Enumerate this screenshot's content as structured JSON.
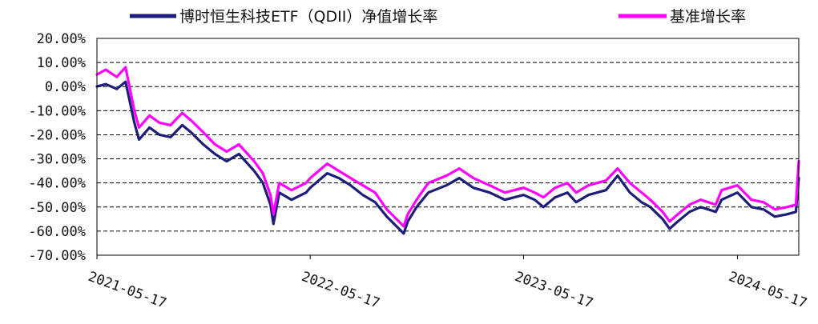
{
  "chart_data": {
    "type": "line",
    "x_ticks": [
      "2021-05-17",
      "2022-05-17",
      "2023-05-17",
      "2024-05-17"
    ],
    "y_ticks": [
      "20.00%",
      "10.00%",
      "0.00%",
      "-10.00%",
      "-20.00%",
      "-30.00%",
      "-40.00%",
      "-50.00%",
      "-60.00%",
      "-70.00%"
    ],
    "ylim": [
      -70,
      20
    ],
    "xlim": [
      "2021-05-17",
      "2024-08-30"
    ],
    "grid": "horizontal dashed",
    "legend_position": "top",
    "series": [
      {
        "name": "博时恒生科技ETF（QDII）净值增长率",
        "color": "#1c1c7a",
        "x": [
          "2021-05-17",
          "2021-06-01",
          "2021-06-20",
          "2021-07-05",
          "2021-07-20",
          "2021-07-28",
          "2021-08-15",
          "2021-09-01",
          "2021-09-20",
          "2021-10-10",
          "2021-10-25",
          "2021-11-15",
          "2021-12-05",
          "2021-12-25",
          "2022-01-15",
          "2022-02-10",
          "2022-02-25",
          "2022-03-10",
          "2022-03-15",
          "2022-03-25",
          "2022-04-15",
          "2022-05-10",
          "2022-05-17",
          "2022-06-15",
          "2022-07-05",
          "2022-07-25",
          "2022-08-15",
          "2022-09-05",
          "2022-09-25",
          "2022-10-24",
          "2022-10-31",
          "2022-11-15",
          "2022-12-05",
          "2023-01-05",
          "2023-01-27",
          "2023-02-20",
          "2023-03-20",
          "2023-04-15",
          "2023-05-17",
          "2023-06-05",
          "2023-06-20",
          "2023-07-10",
          "2023-07-31",
          "2023-08-15",
          "2023-09-05",
          "2023-10-05",
          "2023-10-25",
          "2023-11-15",
          "2023-12-05",
          "2023-12-20",
          "2024-01-10",
          "2024-01-22",
          "2024-02-05",
          "2024-02-25",
          "2024-03-15",
          "2024-04-10",
          "2024-04-20",
          "2024-05-17",
          "2024-06-10",
          "2024-07-01",
          "2024-07-20",
          "2024-08-10",
          "2024-08-25",
          "2024-08-30"
        ],
        "values": [
          0,
          1,
          -1,
          2,
          -15,
          -22,
          -17,
          -20,
          -21,
          -16,
          -19,
          -24,
          -28,
          -31,
          -28,
          -35,
          -40,
          -49,
          -57,
          -44,
          -47,
          -44,
          -42,
          -36,
          -38,
          -41,
          -45,
          -48,
          -54,
          -61,
          -56,
          -50,
          -44,
          -41,
          -38,
          -42,
          -44,
          -47,
          -45,
          -47,
          -50,
          -46,
          -44,
          -48,
          -45,
          -43,
          -37,
          -44,
          -48,
          -50,
          -55,
          -59,
          -56,
          -52,
          -50,
          -52,
          -47,
          -44,
          -50,
          -51,
          -54,
          -53,
          -52,
          -38
        ]
      },
      {
        "name": "基准增长率",
        "color": "#ff00ff",
        "x": [
          "2021-05-17",
          "2021-06-01",
          "2021-06-20",
          "2021-07-05",
          "2021-07-20",
          "2021-07-28",
          "2021-08-15",
          "2021-09-01",
          "2021-09-20",
          "2021-10-10",
          "2021-10-25",
          "2021-11-15",
          "2021-12-05",
          "2021-12-25",
          "2022-01-15",
          "2022-02-10",
          "2022-02-25",
          "2022-03-10",
          "2022-03-15",
          "2022-03-25",
          "2022-04-15",
          "2022-05-10",
          "2022-05-17",
          "2022-06-15",
          "2022-07-05",
          "2022-07-25",
          "2022-08-15",
          "2022-09-05",
          "2022-09-25",
          "2022-10-24",
          "2022-10-31",
          "2022-11-15",
          "2022-12-05",
          "2023-01-05",
          "2023-01-27",
          "2023-02-20",
          "2023-03-20",
          "2023-04-15",
          "2023-05-17",
          "2023-06-05",
          "2023-06-20",
          "2023-07-10",
          "2023-07-31",
          "2023-08-15",
          "2023-09-05",
          "2023-10-05",
          "2023-10-25",
          "2023-11-15",
          "2023-12-05",
          "2023-12-20",
          "2024-01-10",
          "2024-01-22",
          "2024-02-05",
          "2024-02-25",
          "2024-03-15",
          "2024-04-10",
          "2024-04-20",
          "2024-05-17",
          "2024-06-10",
          "2024-07-01",
          "2024-07-20",
          "2024-08-10",
          "2024-08-25",
          "2024-08-30"
        ],
        "values": [
          5,
          7,
          4,
          8,
          -10,
          -17,
          -12,
          -15,
          -16,
          -11,
          -14,
          -19,
          -24,
          -27,
          -24,
          -31,
          -36,
          -45,
          -53,
          -40,
          -43,
          -40,
          -38,
          -32,
          -35,
          -38,
          -41,
          -44,
          -51,
          -58,
          -53,
          -47,
          -40,
          -37,
          -34,
          -38,
          -41,
          -44,
          -42,
          -44,
          -46,
          -42,
          -40,
          -44,
          -41,
          -39,
          -34,
          -40,
          -44,
          -47,
          -52,
          -56,
          -53,
          -49,
          -47,
          -49,
          -43,
          -41,
          -47,
          -48,
          -51,
          -50,
          -49,
          -31
        ]
      }
    ]
  }
}
